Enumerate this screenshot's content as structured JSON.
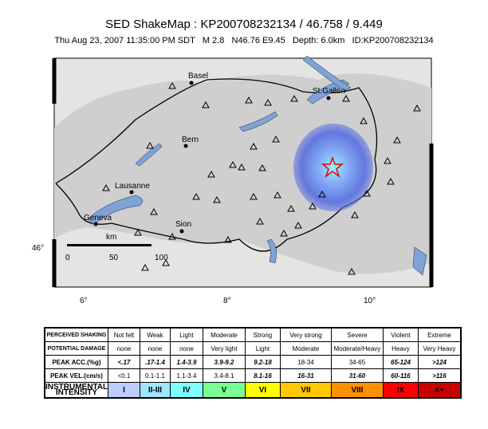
{
  "header": {
    "title": "SED ShakeMap : KP200708232134 / 46.758 / 9.449",
    "subtitle": "Thu Aug 23, 2007 11:35:00 PM SDT   M 2.8   N46.76 E9.45   Depth: 6.0km   ID:KP200708232134"
  },
  "map": {
    "cities": [
      "Basel",
      "St.Gallen",
      "Bern",
      "Lausanne",
      "Geneva",
      "Sion"
    ],
    "lon_labels": [
      "6°",
      "8°",
      "10°"
    ],
    "lat_labels": [
      "46°"
    ],
    "scale": {
      "unit": "km",
      "labels": [
        "0",
        "50",
        "100"
      ]
    }
  },
  "table": {
    "rows": [
      [
        "PERCEIVED SHAKING",
        "Not felt",
        "Weak",
        "Light",
        "Moderate",
        "Strong",
        "Very strong",
        "Severe",
        "Violent",
        "Extreme"
      ],
      [
        "POTENTIAL DAMAGE",
        "none",
        "none",
        "none",
        "Very light",
        "Light",
        "Moderate",
        "Moderate/Heavy",
        "Heavy",
        "Very Heavy"
      ],
      [
        "PEAK ACC.(%g)",
        "<.17",
        ".17-1.4",
        "1.4-3.9",
        "3.9-9.2",
        "9.2-18",
        "18-34",
        "34-65",
        "65-124",
        ">124"
      ],
      [
        "PEAK VEL.(cm/s)",
        "<0.1",
        "0.1-1.1",
        "1.1-3.4",
        "3.4-8.1",
        "8.1-16",
        "16-31",
        "31-60",
        "60-116",
        ">116"
      ],
      [
        "INSTRUMENTAL INTENSITY",
        "I",
        "II-III",
        "IV",
        "V",
        "VI",
        "VII",
        "VIII",
        "IX",
        "X+"
      ]
    ]
  }
}
